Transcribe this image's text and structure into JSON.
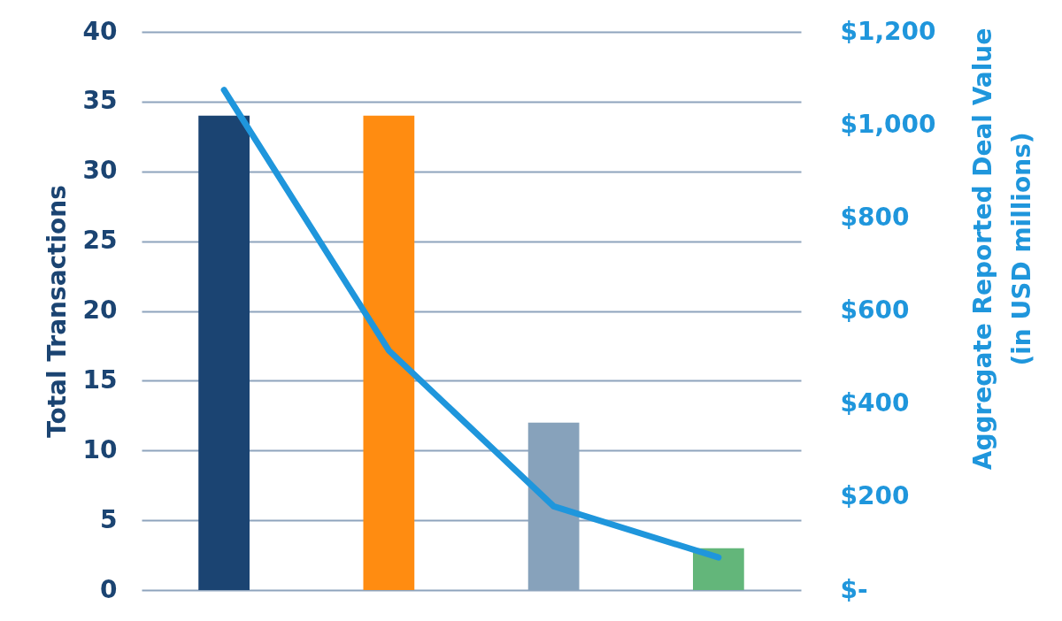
{
  "chart_data": {
    "type": "bar",
    "categories": [
      null,
      null,
      null,
      null
    ],
    "ylabel": "Total Transactions",
    "y2label": "Aggregate Reported Deal Value\n(in USD millions)",
    "series": [
      {
        "values": [
          34,
          34,
          12,
          3
        ],
        "colors": [
          "#1b4472",
          "#ff8c11",
          "#87a2bb",
          "#63b67a"
        ]
      },
      {
        "type": "line",
        "axis": "y2",
        "color": "#1f96dc",
        "line_style": "solid",
        "values": [
          1075,
          515,
          180,
          70
        ]
      }
    ],
    "ylim": [
      0,
      40
    ],
    "yticks": [
      0,
      5,
      10,
      15,
      20,
      25,
      30,
      35,
      40
    ],
    "y2lim": [
      0,
      1200
    ],
    "y2ticks": [
      {
        "value": 0,
        "label": "$-"
      },
      {
        "value": 200,
        "label": "$200"
      },
      {
        "value": 400,
        "label": "$400"
      },
      {
        "value": 600,
        "label": "$600"
      },
      {
        "value": 800,
        "label": "$800"
      },
      {
        "value": 1000,
        "label": "$1,000"
      },
      {
        "value": 1200,
        "label": "$1,200"
      }
    ],
    "grid": "y"
  }
}
